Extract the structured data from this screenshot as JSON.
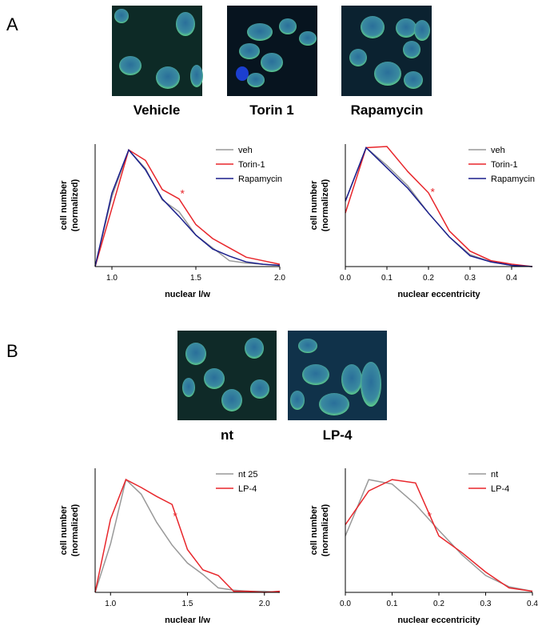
{
  "panels": [
    {
      "label": "A",
      "captions": [
        "Vehicle",
        "Torin 1",
        "Rapamycin"
      ]
    },
    {
      "label": "B",
      "captions": [
        "nt",
        "LP-4"
      ]
    }
  ],
  "chart_data": [
    {
      "type": "line",
      "xlabel": "nuclear l/w",
      "ylabel": [
        "cell number",
        "(normalized)"
      ],
      "x": [
        0.9,
        1.0,
        1.1,
        1.2,
        1.3,
        1.4,
        1.5,
        1.6,
        1.7,
        1.8,
        1.9,
        2.0
      ],
      "xlim": [
        0.9,
        2.0
      ],
      "xticks": [
        {
          "value": 1,
          "label": "1.0"
        },
        1.5,
        {
          "value": 2,
          "label": "2.0"
        }
      ],
      "ylim": [
        0,
        1.05
      ],
      "legend": "upper right",
      "series": [
        {
          "name": "veh",
          "color": "#999999",
          "values": [
            0,
            0.6,
            1.0,
            0.84,
            0.57,
            0.47,
            0.27,
            0.16,
            0.05,
            0.03,
            0.02,
            0.01
          ]
        },
        {
          "name": "Torin-1",
          "color": "#e8262b",
          "values": [
            0,
            0.5,
            1.0,
            0.91,
            0.66,
            0.58,
            0.36,
            0.24,
            0.16,
            0.08,
            0.05,
            0.02
          ]
        },
        {
          "name": "Rapamycin",
          "color": "#1a1f8c",
          "values": [
            0,
            0.63,
            1.0,
            0.83,
            0.58,
            0.43,
            0.27,
            0.15,
            0.09,
            0.04,
            0.02,
            0.01
          ]
        }
      ],
      "annotations": [
        {
          "text": "*",
          "x": 1.42,
          "y": 0.65
        }
      ]
    },
    {
      "type": "line",
      "xlabel": "nuclear eccentricity",
      "ylabel": [
        "cell number",
        "(normalized)"
      ],
      "x": [
        0,
        0.05,
        0.1,
        0.15,
        0.2,
        0.25,
        0.3,
        0.35,
        0.4,
        0.45
      ],
      "xlim": [
        0,
        0.45
      ],
      "xticks": [
        {
          "value": 0,
          "label": "0.0"
        },
        0.1,
        0.2,
        0.3,
        0.4
      ],
      "ylim": [
        0,
        1.03
      ],
      "legend": "upper right",
      "series": [
        {
          "name": "veh",
          "color": "#999999",
          "values": [
            0.55,
            1.0,
            0.85,
            0.68,
            0.45,
            0.25,
            0.1,
            0.04,
            0.01,
            0
          ]
        },
        {
          "name": "Torin-1",
          "color": "#e8262b",
          "values": [
            0.45,
            1.0,
            1.01,
            0.8,
            0.62,
            0.3,
            0.13,
            0.05,
            0.02,
            0
          ]
        },
        {
          "name": "Rapamycin",
          "color": "#1a1f8c",
          "values": [
            0.55,
            1.0,
            0.83,
            0.66,
            0.45,
            0.25,
            0.09,
            0.04,
            0.01,
            0
          ]
        }
      ],
      "annotations": [
        {
          "text": "*",
          "x": 0.21,
          "y": 0.65
        }
      ]
    },
    {
      "type": "line",
      "xlabel": "nuclear l/w",
      "ylabel": [
        "cell number",
        "(normalized)"
      ],
      "x": [
        0.9,
        1.0,
        1.1,
        1.2,
        1.3,
        1.4,
        1.5,
        1.6,
        1.7,
        1.8,
        1.9,
        2.0,
        2.1
      ],
      "xlim": [
        0.9,
        2.1
      ],
      "xticks": [
        {
          "value": 1,
          "label": "1.0"
        },
        1.5,
        {
          "value": 2,
          "label": "2.0"
        }
      ],
      "ylim": [
        0,
        1.1
      ],
      "legend": "upper right",
      "series": [
        {
          "name": "nt 25",
          "color": "#999999",
          "values": [
            0,
            0.43,
            1.0,
            0.87,
            0.62,
            0.42,
            0.26,
            0.16,
            0.04,
            0.02,
            0.01,
            0.01,
            0
          ]
        },
        {
          "name": "LP-4",
          "color": "#e8262b",
          "values": [
            0,
            0.65,
            1.0,
            0.93,
            0.85,
            0.78,
            0.38,
            0.2,
            0.15,
            0.01,
            0.01,
            0,
            0.01
          ]
        }
      ],
      "annotations": [
        {
          "text": "*",
          "x": 1.42,
          "y": 0.7
        }
      ]
    },
    {
      "type": "line",
      "xlabel": "nuclear eccentricity",
      "ylabel": [
        "cell number",
        "(normalized)"
      ],
      "x": [
        0,
        0.05,
        0.1,
        0.15,
        0.2,
        0.25,
        0.3,
        0.35,
        0.4
      ],
      "xlim": [
        0,
        0.4
      ],
      "xticks": [
        {
          "value": 0,
          "label": "0.0"
        },
        0.1,
        0.2,
        0.3,
        0.4
      ],
      "ylim": [
        0,
        1.1
      ],
      "legend": "upper right",
      "series": [
        {
          "name": "nt",
          "color": "#999999",
          "values": [
            0.5,
            1.0,
            0.96,
            0.78,
            0.55,
            0.33,
            0.15,
            0.05,
            0.01
          ]
        },
        {
          "name": "LP-4",
          "color": "#e8262b",
          "values": [
            0.6,
            0.9,
            1.0,
            0.97,
            0.5,
            0.35,
            0.18,
            0.04,
            0.01
          ]
        }
      ],
      "annotations": [
        {
          "text": "*",
          "x": 0.18,
          "y": 0.7
        }
      ]
    }
  ]
}
